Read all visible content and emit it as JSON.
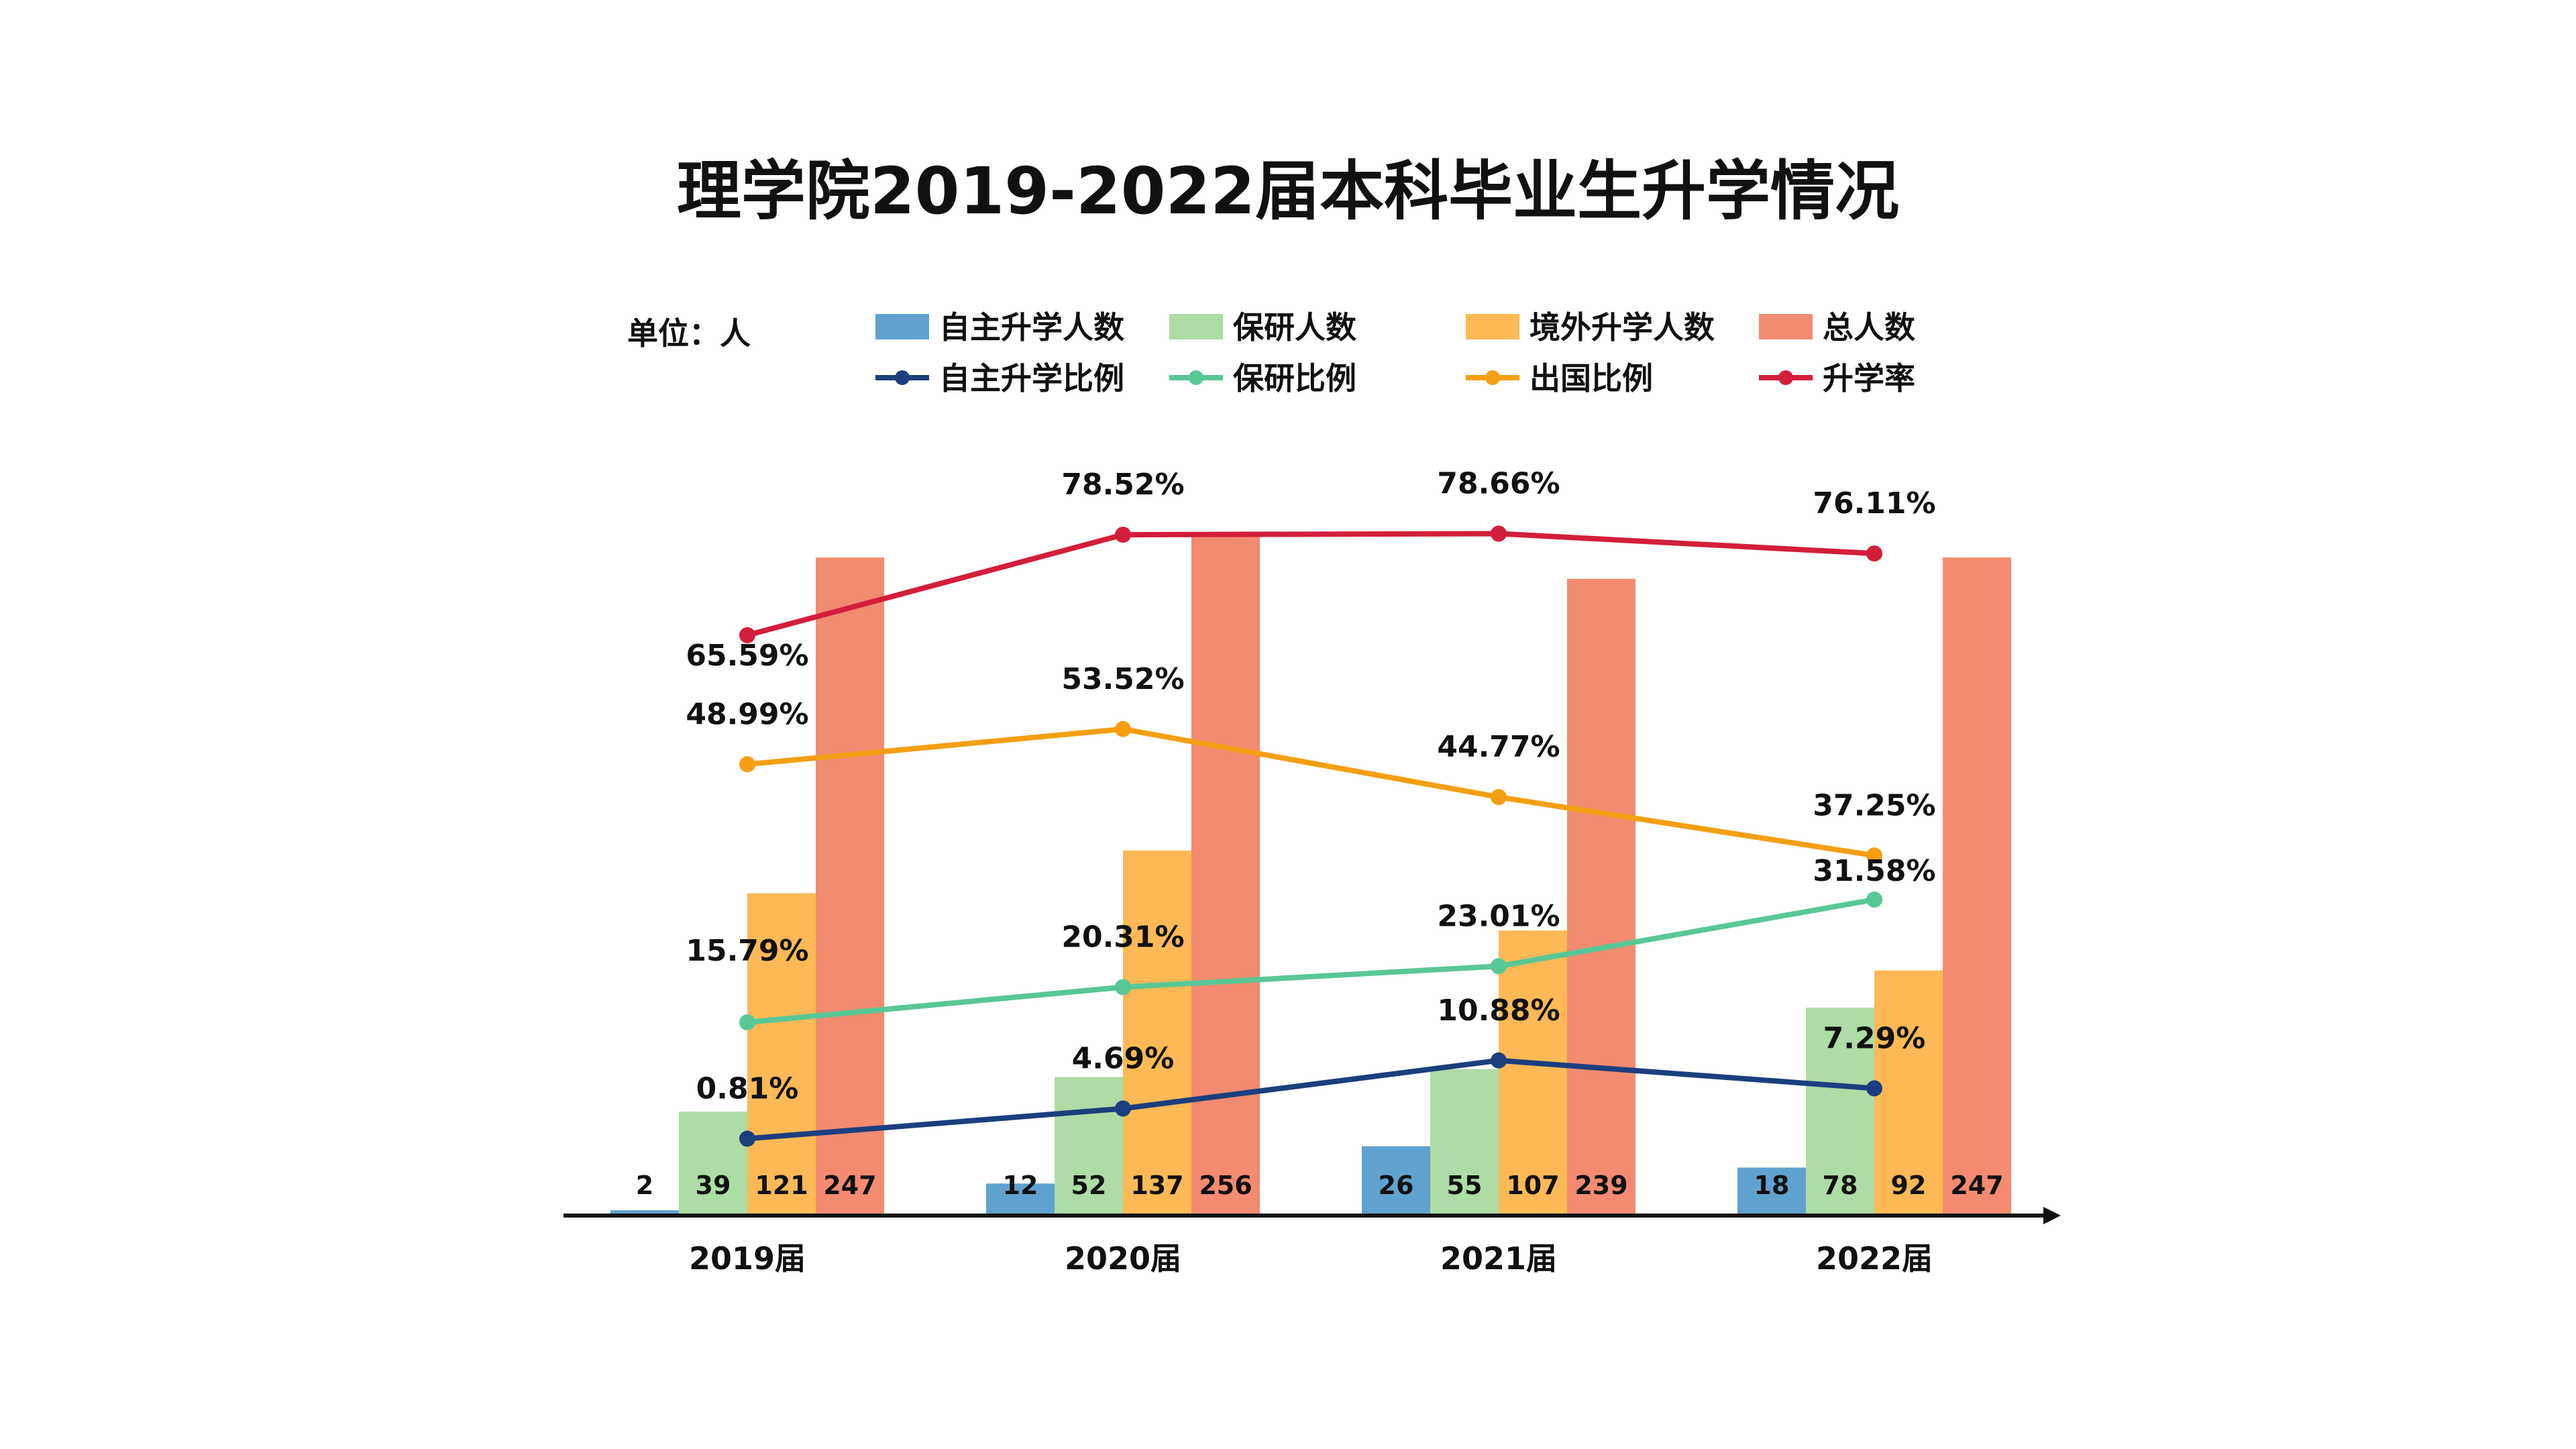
{
  "chart_data": {
    "type": "bar",
    "title": "理学院2019-2022届本科毕业生升学情况",
    "unit_label": "单位：人",
    "categories": [
      "2019届",
      "2020届",
      "2021届",
      "2022届"
    ],
    "ylim": [
      0,
      280
    ],
    "pct_ylim": [
      -2,
      80
    ],
    "grid": false,
    "legend_position": "top",
    "series": [
      {
        "name": "自主升学人数",
        "kind": "bar",
        "color": "#5FA2D0",
        "values": [
          2,
          12,
          26,
          18
        ]
      },
      {
        "name": "保研人数",
        "kind": "bar",
        "color": "#ADDCA5",
        "values": [
          39,
          52,
          55,
          78
        ]
      },
      {
        "name": "境外升学人数",
        "kind": "bar",
        "color": "#FDB955",
        "values": [
          121,
          137,
          107,
          92
        ]
      },
      {
        "name": "总人数",
        "kind": "bar",
        "color": "#F28B70",
        "values": [
          247,
          256,
          239,
          247
        ]
      }
    ],
    "line_series": [
      {
        "name": "自主升学比例",
        "kind": "line",
        "color": "#1B3F7E",
        "values": [
          0.81,
          4.69,
          10.88,
          7.29
        ],
        "labels": [
          "0.81%",
          "4.69%",
          "10.88%",
          "7.29%"
        ]
      },
      {
        "name": "保研比例",
        "kind": "line",
        "color": "#58C796",
        "values": [
          15.79,
          20.31,
          23.01,
          31.58
        ],
        "labels": [
          "15.79%",
          "20.31%",
          "23.01%",
          "31.58%"
        ]
      },
      {
        "name": "出国比例",
        "kind": "line",
        "color": "#F49F13",
        "values": [
          48.99,
          53.52,
          44.77,
          37.25
        ],
        "labels": [
          "48.99%",
          "53.52%",
          "44.77%",
          "37.25%"
        ]
      },
      {
        "name": "升学率",
        "kind": "line",
        "color": "#D31E3A",
        "values": [
          65.59,
          78.52,
          78.66,
          76.11
        ],
        "labels": [
          "65.59%",
          "78.52%",
          "78.66%",
          "76.11%"
        ]
      }
    ]
  }
}
